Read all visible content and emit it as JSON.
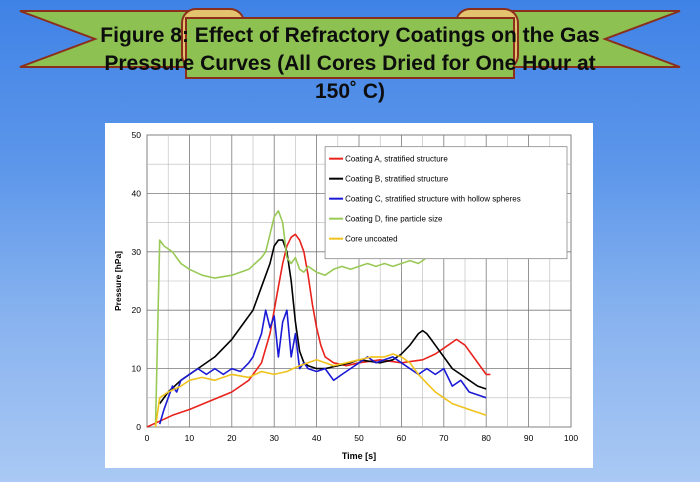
{
  "title": {
    "line1": "Figure 8: Effect of Refractory Coatings on the Gas",
    "line2": "Pressure Curves (All Cores Dried for One Hour at",
    "line3": "150˚ C)"
  },
  "colors": {
    "background": "#5a96e8",
    "banner_ribbon": "#8dc152",
    "banner_scroll": "#e3c36d",
    "banner_border": "#8b2f1c"
  },
  "chart_data": {
    "type": "line",
    "xlabel": "Time [s]",
    "ylabel": "Pressure [hPa]",
    "xlim": [
      0,
      100
    ],
    "ylim": [
      0,
      50
    ],
    "xticks": [
      0,
      10,
      20,
      30,
      40,
      50,
      60,
      70,
      80,
      90,
      100
    ],
    "yticks": [
      0,
      10,
      20,
      30,
      40,
      50
    ],
    "grid": true,
    "legend_position": "top-right",
    "series": [
      {
        "name": "Coating A, stratified structure",
        "color": "#e8221c",
        "points": [
          [
            0,
            0
          ],
          [
            3,
            1
          ],
          [
            6,
            2
          ],
          [
            10,
            3
          ],
          [
            15,
            4.5
          ],
          [
            20,
            6
          ],
          [
            24,
            8
          ],
          [
            27,
            11
          ],
          [
            29,
            16
          ],
          [
            30,
            20
          ],
          [
            31,
            24
          ],
          [
            32,
            28
          ],
          [
            33,
            31
          ],
          [
            34,
            32.5
          ],
          [
            35,
            33
          ],
          [
            36,
            32
          ],
          [
            37,
            30
          ],
          [
            38,
            26
          ],
          [
            39,
            21
          ],
          [
            40,
            17
          ],
          [
            41,
            14
          ],
          [
            42,
            12
          ],
          [
            44,
            11
          ],
          [
            47,
            10.5
          ],
          [
            50,
            11
          ],
          [
            55,
            11.5
          ],
          [
            60,
            11
          ],
          [
            65,
            11.5
          ],
          [
            68,
            12.5
          ],
          [
            70,
            13.5
          ],
          [
            73,
            15
          ],
          [
            75,
            14
          ],
          [
            77,
            12
          ],
          [
            79,
            10
          ],
          [
            80,
            9
          ],
          [
            81,
            9
          ]
        ]
      },
      {
        "name": "Coating B, stratified structure",
        "color": "#000000",
        "points": [
          [
            3,
            4
          ],
          [
            5,
            6
          ],
          [
            8,
            8
          ],
          [
            12,
            10
          ],
          [
            16,
            12
          ],
          [
            20,
            15
          ],
          [
            23,
            18
          ],
          [
            25,
            20
          ],
          [
            27,
            24
          ],
          [
            29,
            28
          ],
          [
            30,
            31
          ],
          [
            31,
            32
          ],
          [
            32,
            32
          ],
          [
            33,
            30
          ],
          [
            34,
            25
          ],
          [
            35,
            18
          ],
          [
            36,
            13
          ],
          [
            37,
            11
          ],
          [
            38,
            10.5
          ],
          [
            40,
            10
          ],
          [
            42,
            10
          ],
          [
            45,
            10.5
          ],
          [
            48,
            11
          ],
          [
            50,
            11.5
          ],
          [
            55,
            11
          ],
          [
            58,
            11.5
          ],
          [
            60,
            12.5
          ],
          [
            62,
            14
          ],
          [
            64,
            16
          ],
          [
            65,
            16.5
          ],
          [
            66,
            16
          ],
          [
            67,
            15
          ],
          [
            68,
            14
          ],
          [
            70,
            12
          ],
          [
            72,
            10
          ],
          [
            74,
            9
          ],
          [
            76,
            8
          ],
          [
            78,
            7
          ],
          [
            80,
            6.5
          ]
        ]
      },
      {
        "name": "Coating C, stratified structure with hollow spheres",
        "color": "#1a1ad6",
        "points": [
          [
            3,
            0.5
          ],
          [
            4,
            3
          ],
          [
            5,
            5
          ],
          [
            6,
            7
          ],
          [
            7,
            6
          ],
          [
            8,
            8
          ],
          [
            10,
            9
          ],
          [
            12,
            10
          ],
          [
            14,
            9
          ],
          [
            16,
            10
          ],
          [
            18,
            9
          ],
          [
            20,
            10
          ],
          [
            22,
            9.5
          ],
          [
            24,
            11
          ],
          [
            25,
            12
          ],
          [
            26,
            14
          ],
          [
            27,
            16
          ],
          [
            28,
            20
          ],
          [
            29,
            17
          ],
          [
            30,
            19
          ],
          [
            31,
            12
          ],
          [
            32,
            18
          ],
          [
            33,
            20
          ],
          [
            34,
            12
          ],
          [
            35,
            16
          ],
          [
            36,
            10
          ],
          [
            37,
            11
          ],
          [
            38,
            10
          ],
          [
            40,
            9.5
          ],
          [
            42,
            10
          ],
          [
            44,
            8
          ],
          [
            46,
            9
          ],
          [
            48,
            10
          ],
          [
            50,
            11
          ],
          [
            52,
            12
          ],
          [
            54,
            11
          ],
          [
            56,
            11.5
          ],
          [
            58,
            12
          ],
          [
            60,
            11
          ],
          [
            62,
            10
          ],
          [
            64,
            9
          ],
          [
            66,
            10
          ],
          [
            68,
            9
          ],
          [
            70,
            10
          ],
          [
            72,
            7
          ],
          [
            74,
            8
          ],
          [
            76,
            6
          ],
          [
            78,
            5.5
          ],
          [
            80,
            5
          ]
        ]
      },
      {
        "name": "Coating D, fine particle size",
        "color": "#99c956",
        "points": [
          [
            2,
            0
          ],
          [
            3,
            32
          ],
          [
            4,
            31
          ],
          [
            6,
            30
          ],
          [
            8,
            28
          ],
          [
            10,
            27
          ],
          [
            13,
            26
          ],
          [
            16,
            25.5
          ],
          [
            20,
            26
          ],
          [
            24,
            27
          ],
          [
            27,
            29
          ],
          [
            28,
            30
          ],
          [
            29,
            33
          ],
          [
            30,
            36
          ],
          [
            31,
            37
          ],
          [
            32,
            35
          ],
          [
            33,
            29
          ],
          [
            34,
            28
          ],
          [
            35,
            29
          ],
          [
            36,
            27
          ],
          [
            37,
            26.5
          ],
          [
            38,
            27.5
          ],
          [
            40,
            26.5
          ],
          [
            42,
            26
          ],
          [
            44,
            27
          ],
          [
            46,
            27.5
          ],
          [
            48,
            27
          ],
          [
            50,
            27.5
          ],
          [
            52,
            28
          ],
          [
            54,
            27.5
          ],
          [
            56,
            28
          ],
          [
            58,
            27.5
          ],
          [
            60,
            28
          ],
          [
            62,
            28.5
          ],
          [
            64,
            28
          ],
          [
            66,
            29
          ]
        ]
      },
      {
        "name": "Core uncoated",
        "color": "#f0c21c",
        "points": [
          [
            2,
            0
          ],
          [
            3,
            5
          ],
          [
            5,
            6
          ],
          [
            8,
            7
          ],
          [
            10,
            8
          ],
          [
            13,
            8.5
          ],
          [
            16,
            8
          ],
          [
            20,
            9
          ],
          [
            24,
            8.5
          ],
          [
            27,
            9.5
          ],
          [
            30,
            9
          ],
          [
            33,
            9.5
          ],
          [
            36,
            10.5
          ],
          [
            38,
            11
          ],
          [
            40,
            11.5
          ],
          [
            42,
            11
          ],
          [
            44,
            10.5
          ],
          [
            47,
            11
          ],
          [
            50,
            11.5
          ],
          [
            53,
            12
          ],
          [
            56,
            12
          ],
          [
            58,
            12.5
          ],
          [
            60,
            12
          ],
          [
            62,
            11
          ],
          [
            64,
            9
          ],
          [
            66,
            7.5
          ],
          [
            68,
            6
          ],
          [
            70,
            5
          ],
          [
            72,
            4
          ],
          [
            74,
            3.5
          ],
          [
            76,
            3
          ],
          [
            78,
            2.5
          ],
          [
            80,
            2
          ]
        ]
      }
    ]
  }
}
